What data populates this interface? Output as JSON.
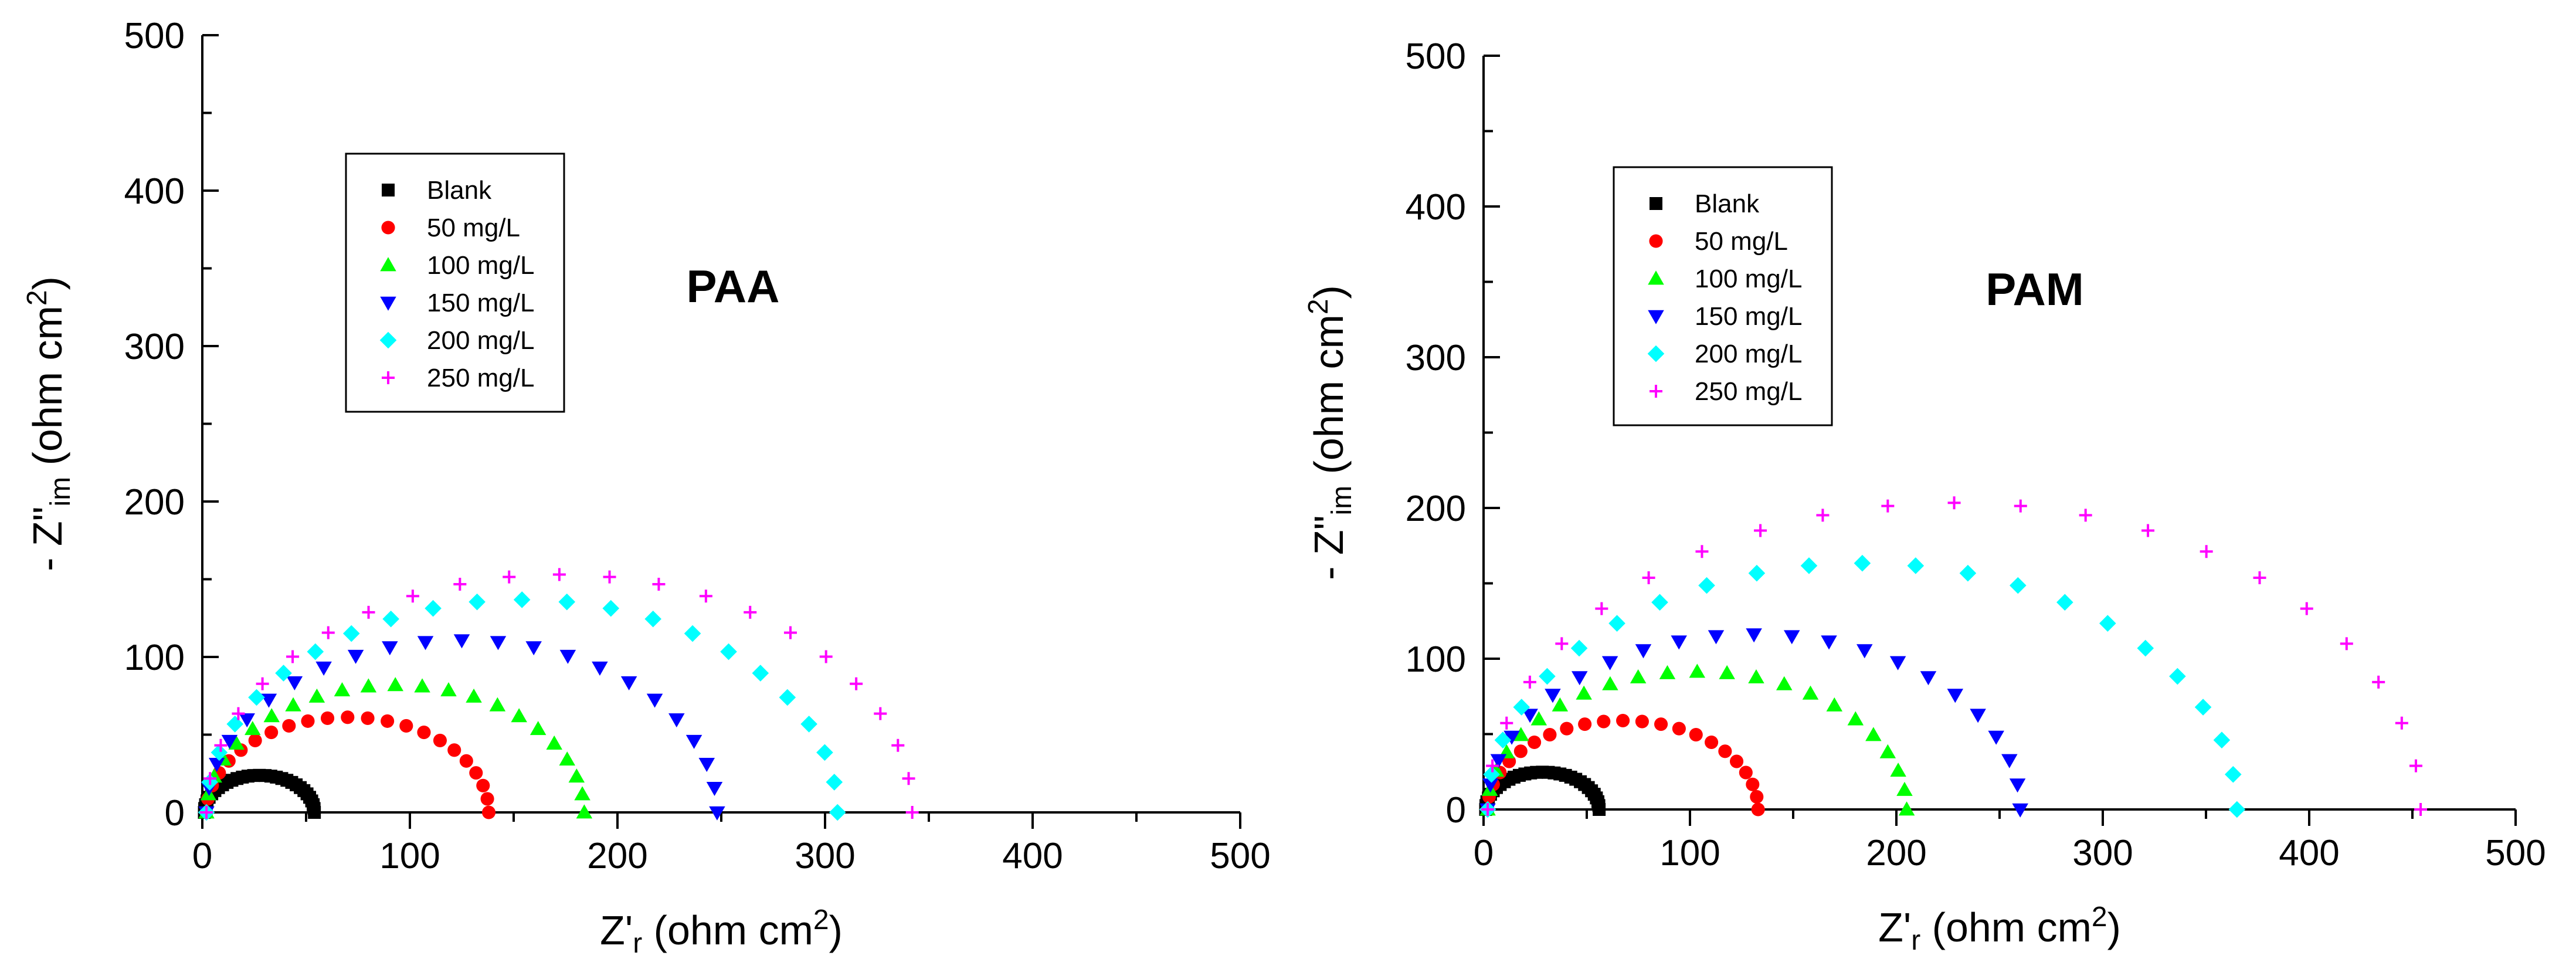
{
  "chart_data": [
    {
      "type": "scatter",
      "title": "PAA",
      "xlabel": "Z'r (ohm cm2)",
      "ylabel": "- Z\"im (ohm cm2)",
      "xlim": [
        0,
        500
      ],
      "ylim": [
        0,
        500
      ],
      "xticks": [
        0,
        100,
        200,
        300,
        400,
        500
      ],
      "yticks": [
        0,
        100,
        200,
        300,
        400,
        500
      ],
      "legend_position": "upper-left",
      "series": [
        {
          "name": "Blank",
          "marker": "square",
          "color": "#000000",
          "diameter": [
            1,
            54
          ]
        },
        {
          "name": "50 mg/L",
          "marker": "circle",
          "color": "#ff0000",
          "diameter": [
            2,
            138
          ]
        },
        {
          "name": "100 mg/L",
          "marker": "triangle-up",
          "color": "#00ff00",
          "diameter": [
            2,
            184
          ]
        },
        {
          "name": "150 mg/L",
          "marker": "triangle-down",
          "color": "#0000ff",
          "diameter": [
            2,
            248
          ]
        },
        {
          "name": "200 mg/L",
          "marker": "diamond",
          "color": "#00ffff",
          "diameter": [
            2,
            306
          ]
        },
        {
          "name": "250 mg/L",
          "marker": "plus",
          "color": "#ff00ff",
          "diameter": [
            2,
            342
          ]
        }
      ]
    },
    {
      "type": "scatter",
      "title": "PAM",
      "xlabel": "Z'r (ohm cm2)",
      "ylabel": "- Z\"im (ohm cm2)",
      "xlim": [
        0,
        500
      ],
      "ylim": [
        0,
        500
      ],
      "xticks": [
        0,
        100,
        200,
        300,
        400,
        500
      ],
      "yticks": [
        0,
        100,
        200,
        300,
        400,
        500
      ],
      "legend_position": "upper-left",
      "series": [
        {
          "name": "Blank",
          "marker": "square",
          "color": "#000000",
          "diameter": [
            1,
            56
          ]
        },
        {
          "name": "50 mg/L",
          "marker": "circle",
          "color": "#ff0000",
          "diameter": [
            2,
            133
          ]
        },
        {
          "name": "100 mg/L",
          "marker": "triangle-up",
          "color": "#00ff00",
          "diameter": [
            2,
            205
          ]
        },
        {
          "name": "150 mg/L",
          "marker": "triangle-down",
          "color": "#0000ff",
          "diameter": [
            2,
            260
          ]
        },
        {
          "name": "200 mg/L",
          "marker": "diamond",
          "color": "#00ffff",
          "diameter": [
            2,
            365
          ]
        },
        {
          "name": "250 mg/L",
          "marker": "plus",
          "color": "#ff00ff",
          "diameter": [
            2,
            454
          ]
        }
      ]
    }
  ]
}
